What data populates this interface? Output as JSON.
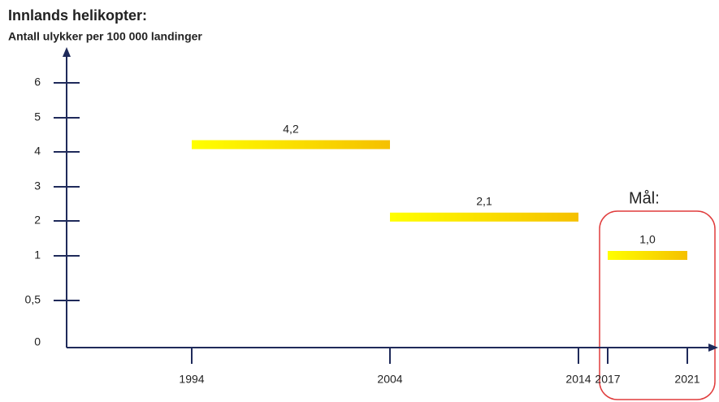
{
  "chart_data": {
    "type": "range-bar",
    "title": "Innlands helikopter:",
    "y_label": "Antall ulykker per 100 000 landinger",
    "annotation": "Mål:",
    "x": [
      [
        1994,
        2004
      ],
      [
        2004,
        2014
      ],
      [
        2017,
        2021
      ]
    ],
    "values": [
      4.2,
      2.1,
      1.0
    ],
    "value_labels": [
      "4,2",
      "2,1",
      "1,0"
    ],
    "color": [
      "#ffff00",
      "#f5c000"
    ],
    "xticks": [
      1994,
      2004,
      2014,
      2017,
      2021
    ],
    "yticks": [
      0,
      {
        "value": 0.5,
        "label": "0,5"
      },
      1,
      2,
      3,
      4,
      5,
      6
    ]
  }
}
